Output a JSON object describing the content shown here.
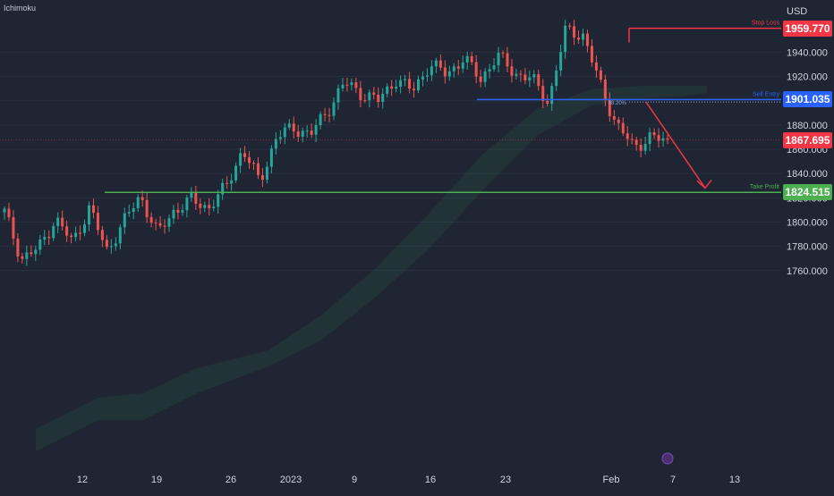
{
  "indicator_label": "Ichimoku",
  "currency_label": "USD",
  "colors": {
    "background": "#1f2533",
    "up_candle": "#26a69a",
    "down_candle": "#ef5350",
    "stop_loss": "#f23645",
    "entry": "#2962ff",
    "take_profit": "#4caf50",
    "current": "#f23645",
    "axis_text": "#d1d4dc",
    "grid": "#2a3040",
    "cloud": "#2e6b4a"
  },
  "chart_data": {
    "type": "candlestick",
    "ylim": [
      1760,
      1972
    ],
    "y_ticks": [
      1760,
      1780,
      1800,
      1820,
      1840,
      1860,
      1880,
      1900,
      1920,
      1940
    ],
    "y_tick_labels": [
      "1760.000",
      "1780.000",
      "1800.000",
      "1820.000",
      "1840.000",
      "1860.000",
      "1880.000",
      "1900.000",
      "1920.000",
      "1940.000"
    ],
    "x_tick_labels": [
      "12",
      "19",
      "26",
      "2023",
      "9",
      "16",
      "23",
      "Feb",
      "7",
      "13"
    ],
    "levels": {
      "stop_loss": {
        "label": "Stop Loss",
        "value": 1959.77,
        "display": "1959.770"
      },
      "entry": {
        "label": "Sell Entry",
        "value": 1901.035,
        "display": "1901.035"
      },
      "fib": {
        "label": "38.20%",
        "value": 1899.0
      },
      "take_profit": {
        "label": "Take Profit",
        "value": 1824.515,
        "display": "1824.515"
      },
      "current": {
        "value": 1867.695,
        "display": "1867.695"
      }
    },
    "price_path": [
      1808,
      1770,
      1778,
      1803,
      1783,
      1812,
      1776,
      1800,
      1822,
      1790,
      1810,
      1818,
      1812,
      1828,
      1860,
      1833,
      1870,
      1878,
      1872,
      1892,
      1915,
      1906,
      1900,
      1918,
      1908,
      1930,
      1922,
      1935,
      1918,
      1937,
      1923,
      1918,
      1899,
      1958,
      1955,
      1915,
      1880,
      1862,
      1870,
      1866
    ],
    "projection": {
      "from": 1899,
      "to": 1828
    }
  }
}
